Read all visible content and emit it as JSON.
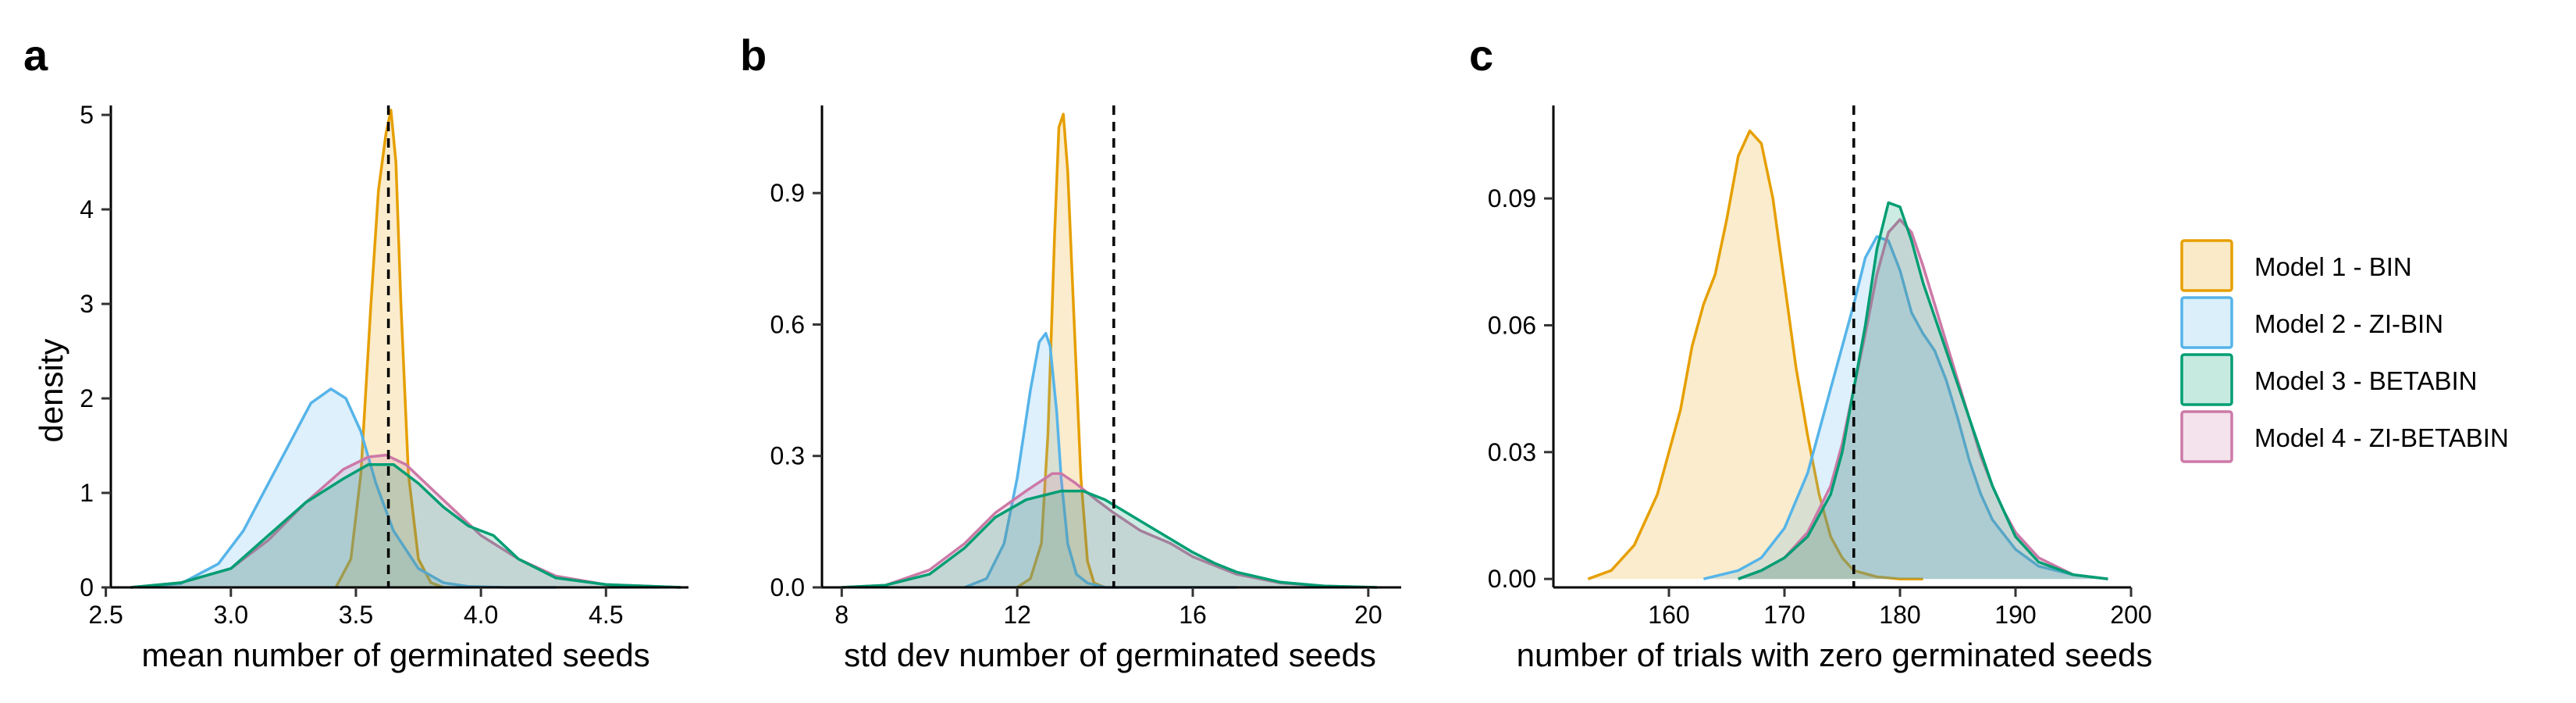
{
  "colors": {
    "Model 1 - BIN": "#E69F00",
    "Model 2 - ZI-BIN": "#56B4E9",
    "Model 3 - BETABIN": "#009E73",
    "Model 4 - ZI-BETABIN": "#CC79A7"
  },
  "legend": {
    "entries": [
      "Model 1 - BIN",
      "Model 2 - ZI-BIN",
      "Model 3 - BETABIN",
      "Model 4 - ZI-BETABIN"
    ],
    "placement": "right"
  },
  "chart_data": [
    {
      "type": "area",
      "panel": "a",
      "title": "",
      "xlabel": "mean number of germinated seeds",
      "ylabel": "density",
      "xlim": [
        2.52,
        4.83
      ],
      "ylim": [
        0,
        5.1
      ],
      "xticks": [
        2.5,
        3.0,
        3.5,
        4.0,
        4.5
      ],
      "xtick_labels": [
        "2.5",
        "3.0",
        "3.5",
        "4.0",
        "4.5"
      ],
      "yticks": [
        0,
        1,
        2,
        3,
        4,
        5
      ],
      "ytick_labels": [
        "0",
        "1",
        "2",
        "3",
        "4",
        "5"
      ],
      "grid": false,
      "reference_line": 3.63,
      "series": [
        {
          "name": "Model 1 - BIN",
          "x": [
            3.42,
            3.48,
            3.52,
            3.56,
            3.59,
            3.62,
            3.64,
            3.66,
            3.68,
            3.71,
            3.75,
            3.8,
            3.85
          ],
          "y": [
            0,
            0.3,
            1.2,
            3.0,
            4.2,
            4.8,
            5.05,
            4.5,
            3.0,
            1.2,
            0.3,
            0.05,
            0
          ]
        },
        {
          "name": "Model 2 - ZI-BIN",
          "x": [
            2.6,
            2.8,
            2.95,
            3.05,
            3.15,
            3.25,
            3.32,
            3.4,
            3.46,
            3.52,
            3.58,
            3.65,
            3.75,
            3.85,
            3.95,
            4.1,
            4.3
          ],
          "y": [
            0,
            0.04,
            0.25,
            0.6,
            1.1,
            1.6,
            1.95,
            2.1,
            2.0,
            1.65,
            1.1,
            0.6,
            0.2,
            0.05,
            0.01,
            0,
            0
          ]
        },
        {
          "name": "Model 3 - BETABIN",
          "x": [
            2.6,
            2.8,
            3.0,
            3.15,
            3.3,
            3.45,
            3.55,
            3.65,
            3.75,
            3.85,
            3.95,
            4.05,
            4.15,
            4.3,
            4.5,
            4.8
          ],
          "y": [
            0,
            0.05,
            0.2,
            0.55,
            0.9,
            1.15,
            1.3,
            1.3,
            1.1,
            0.85,
            0.65,
            0.55,
            0.3,
            0.1,
            0.03,
            0
          ]
        },
        {
          "name": "Model 4 - ZI-BETABIN",
          "x": [
            2.6,
            2.8,
            3.0,
            3.15,
            3.3,
            3.45,
            3.55,
            3.62,
            3.7,
            3.8,
            3.9,
            4.0,
            4.15,
            4.3,
            4.5,
            4.8
          ],
          "y": [
            0,
            0.05,
            0.2,
            0.5,
            0.9,
            1.25,
            1.38,
            1.4,
            1.3,
            1.05,
            0.8,
            0.55,
            0.3,
            0.12,
            0.03,
            0
          ]
        }
      ]
    },
    {
      "type": "area",
      "panel": "b",
      "title": "",
      "xlabel": "std dev number of germinated seeds",
      "ylabel": "",
      "xlim": [
        7.55,
        20.75
      ],
      "ylim": [
        0,
        1.1
      ],
      "xticks": [
        8,
        12,
        16,
        20
      ],
      "xtick_labels": [
        "8",
        "12",
        "16",
        "20"
      ],
      "yticks": [
        0,
        0.3,
        0.6,
        0.9
      ],
      "ytick_labels": [
        "0.0",
        "0.3",
        "0.6",
        "0.9"
      ],
      "grid": false,
      "reference_line": 14.2,
      "series": [
        {
          "name": "Model 1 - BIN",
          "x": [
            12.0,
            12.3,
            12.55,
            12.7,
            12.85,
            12.95,
            13.05,
            13.15,
            13.3,
            13.45,
            13.6,
            13.75,
            14.0
          ],
          "y": [
            0,
            0.02,
            0.1,
            0.35,
            0.8,
            1.05,
            1.08,
            0.95,
            0.6,
            0.25,
            0.06,
            0.01,
            0
          ]
        },
        {
          "name": "Model 2 - ZI-BIN",
          "x": [
            10.8,
            11.3,
            11.7,
            12.0,
            12.3,
            12.5,
            12.65,
            12.75,
            12.9,
            13.0,
            13.15,
            13.35,
            13.6,
            14.0,
            15.0,
            16.0,
            17.0
          ],
          "y": [
            0,
            0.02,
            0.1,
            0.25,
            0.45,
            0.56,
            0.58,
            0.55,
            0.4,
            0.25,
            0.1,
            0.03,
            0.01,
            0,
            0,
            0,
            0
          ]
        },
        {
          "name": "Model 3 - BETABIN",
          "x": [
            8.0,
            9.0,
            10.0,
            10.8,
            11.5,
            12.2,
            13.0,
            13.5,
            14.0,
            14.5,
            15.0,
            15.5,
            16.0,
            16.5,
            17.0,
            18.0,
            19.0,
            20.2
          ],
          "y": [
            0,
            0.005,
            0.03,
            0.09,
            0.16,
            0.2,
            0.22,
            0.22,
            0.2,
            0.17,
            0.14,
            0.11,
            0.08,
            0.055,
            0.035,
            0.012,
            0.003,
            0
          ]
        },
        {
          "name": "Model 4 - ZI-BETABIN",
          "x": [
            8.0,
            9.0,
            10.0,
            10.8,
            11.5,
            12.2,
            12.8,
            13.0,
            13.3,
            13.8,
            14.2,
            14.8,
            15.5,
            16.0,
            16.5,
            17.0,
            18.0,
            19.0,
            20.2
          ],
          "y": [
            0,
            0.005,
            0.04,
            0.1,
            0.17,
            0.22,
            0.26,
            0.26,
            0.24,
            0.2,
            0.17,
            0.13,
            0.1,
            0.07,
            0.05,
            0.03,
            0.01,
            0.003,
            0
          ]
        }
      ]
    },
    {
      "type": "area",
      "panel": "c",
      "title": "",
      "xlabel": "number of trials with zero germinated seeds",
      "ylabel": "",
      "xlim": [
        150.0,
        200.0
      ],
      "ylim": [
        -0.002,
        0.112
      ],
      "xticks": [
        160,
        170,
        180,
        190,
        200
      ],
      "xtick_labels": [
        "160",
        "170",
        "180",
        "190",
        "200"
      ],
      "yticks": [
        0,
        0.03,
        0.06,
        0.09
      ],
      "ytick_labels": [
        "0.00",
        "0.03",
        "0.06",
        "0.09"
      ],
      "grid": false,
      "reference_line": 176,
      "series": [
        {
          "name": "Model 1 - BIN",
          "x": [
            153,
            155,
            157,
            159,
            161,
            162,
            163,
            164,
            165,
            166,
            167,
            168,
            169,
            170,
            171,
            172,
            173,
            174,
            175,
            176,
            178,
            180,
            182
          ],
          "y": [
            0,
            0.002,
            0.008,
            0.02,
            0.04,
            0.055,
            0.065,
            0.072,
            0.085,
            0.1,
            0.106,
            0.103,
            0.09,
            0.07,
            0.05,
            0.034,
            0.02,
            0.01,
            0.005,
            0.002,
            0.0005,
            0,
            0
          ]
        },
        {
          "name": "Model 2 - ZI-BIN",
          "x": [
            163,
            166,
            168,
            170,
            172,
            174,
            176,
            177,
            178,
            179,
            180,
            181,
            182,
            183,
            184,
            185,
            186,
            187,
            188,
            190,
            192,
            195,
            198
          ],
          "y": [
            0,
            0.002,
            0.005,
            0.012,
            0.025,
            0.045,
            0.065,
            0.076,
            0.081,
            0.08,
            0.073,
            0.063,
            0.058,
            0.054,
            0.047,
            0.038,
            0.028,
            0.02,
            0.014,
            0.007,
            0.003,
            0.001,
            0
          ]
        },
        {
          "name": "Model 3 - BETABIN",
          "x": [
            166,
            168,
            170,
            172,
            174,
            175,
            176,
            177,
            178,
            179,
            180,
            181,
            182,
            183,
            184,
            185,
            186,
            187,
            188,
            189,
            190,
            192,
            195,
            198
          ],
          "y": [
            0,
            0.002,
            0.005,
            0.01,
            0.02,
            0.03,
            0.045,
            0.06,
            0.078,
            0.089,
            0.088,
            0.08,
            0.07,
            0.062,
            0.054,
            0.046,
            0.038,
            0.03,
            0.022,
            0.016,
            0.01,
            0.004,
            0.001,
            0
          ]
        },
        {
          "name": "Model 4 - ZI-BETABIN",
          "x": [
            166,
            168,
            170,
            172,
            174,
            175,
            176,
            177,
            178,
            179,
            180,
            181,
            182,
            183,
            184,
            185,
            186,
            187,
            188,
            189,
            190,
            192,
            195,
            198
          ],
          "y": [
            0,
            0.002,
            0.005,
            0.011,
            0.022,
            0.032,
            0.045,
            0.058,
            0.072,
            0.082,
            0.085,
            0.082,
            0.074,
            0.065,
            0.056,
            0.047,
            0.038,
            0.029,
            0.022,
            0.016,
            0.011,
            0.005,
            0.001,
            0
          ]
        }
      ]
    }
  ]
}
